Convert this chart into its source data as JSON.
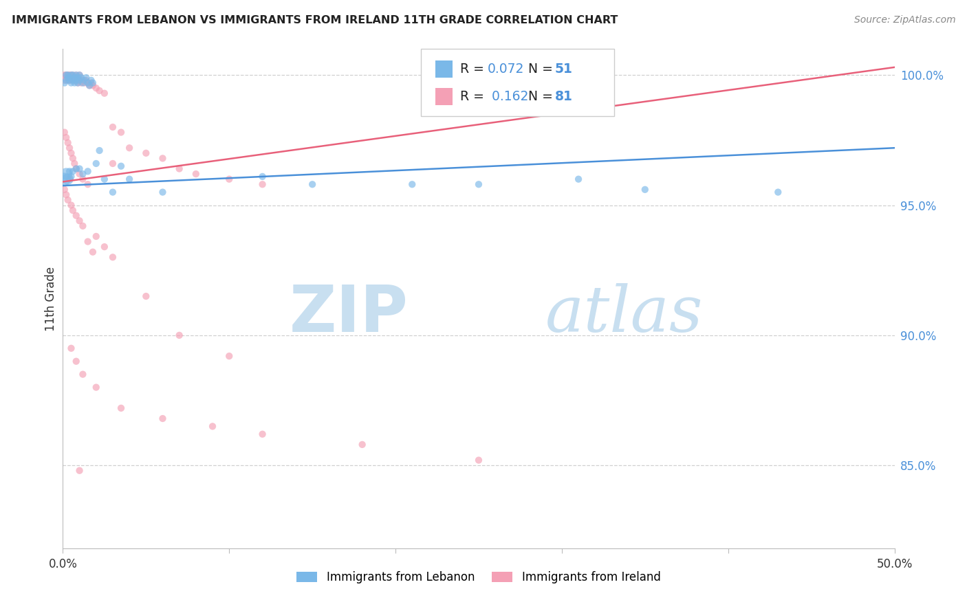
{
  "title": "IMMIGRANTS FROM LEBANON VS IMMIGRANTS FROM IRELAND 11TH GRADE CORRELATION CHART",
  "source": "Source: ZipAtlas.com",
  "ylabel": "11th Grade",
  "ylabel_right_labels": [
    "100.0%",
    "95.0%",
    "90.0%",
    "85.0%"
  ],
  "ylabel_right_values": [
    1.0,
    0.95,
    0.9,
    0.85
  ],
  "xmin": 0.0,
  "xmax": 0.5,
  "ymin": 0.818,
  "ymax": 1.01,
  "legend_blue_r": "0.072",
  "legend_blue_n": "51",
  "legend_pink_r": "0.162",
  "legend_pink_n": "81",
  "legend_label_blue": "Immigrants from Lebanon",
  "legend_label_pink": "Immigrants from Ireland",
  "blue_color": "#7ab8e8",
  "pink_color": "#f4a0b5",
  "blue_line_color": "#4a90d9",
  "pink_line_color": "#e8607a",
  "watermark_zip": "ZIP",
  "watermark_atlas": "atlas",
  "grid_color": "#d0d0d0",
  "blue_line_x0": 0.0,
  "blue_line_y0": 0.9575,
  "blue_line_x1": 0.5,
  "blue_line_y1": 0.972,
  "pink_line_x0": 0.0,
  "pink_line_y0": 0.959,
  "pink_line_x1": 0.5,
  "pink_line_y1": 1.003,
  "blue_x": [
    0.001,
    0.002,
    0.002,
    0.003,
    0.003,
    0.004,
    0.004,
    0.005,
    0.005,
    0.006,
    0.006,
    0.007,
    0.007,
    0.008,
    0.008,
    0.009,
    0.009,
    0.01,
    0.01,
    0.011,
    0.012,
    0.013,
    0.014,
    0.015,
    0.016,
    0.017,
    0.018,
    0.02,
    0.022,
    0.025,
    0.03,
    0.035,
    0.04,
    0.06,
    0.12,
    0.15,
    0.21,
    0.25,
    0.31,
    0.35,
    0.43,
    0.001,
    0.002,
    0.003,
    0.004,
    0.005,
    0.006,
    0.008,
    0.01,
    0.012,
    0.015
  ],
  "blue_y": [
    0.997,
    1.0,
    0.998,
    0.999,
    1.0,
    0.998,
    0.999,
    0.997,
    1.0,
    0.998,
    1.0,
    0.999,
    0.997,
    0.998,
    1.0,
    0.999,
    0.997,
    0.998,
    1.0,
    0.999,
    0.997,
    0.998,
    0.999,
    0.997,
    0.996,
    0.998,
    0.997,
    0.966,
    0.971,
    0.96,
    0.955,
    0.965,
    0.96,
    0.955,
    0.961,
    0.958,
    0.958,
    0.958,
    0.96,
    0.956,
    0.955,
    0.96,
    0.962,
    0.96,
    0.963,
    0.961,
    0.963,
    0.964,
    0.964,
    0.962,
    0.963
  ],
  "blue_sizes": [
    55,
    55,
    55,
    55,
    55,
    55,
    55,
    55,
    55,
    55,
    55,
    55,
    55,
    55,
    55,
    55,
    55,
    55,
    55,
    55,
    55,
    55,
    55,
    55,
    55,
    55,
    55,
    55,
    55,
    55,
    55,
    55,
    55,
    55,
    55,
    55,
    55,
    55,
    55,
    55,
    55,
    180,
    160,
    140,
    55,
    55,
    55,
    55,
    55,
    55,
    55
  ],
  "pink_x": [
    0.001,
    0.001,
    0.002,
    0.002,
    0.003,
    0.003,
    0.003,
    0.004,
    0.004,
    0.005,
    0.005,
    0.006,
    0.006,
    0.007,
    0.007,
    0.008,
    0.008,
    0.009,
    0.009,
    0.01,
    0.01,
    0.011,
    0.012,
    0.013,
    0.014,
    0.015,
    0.016,
    0.017,
    0.018,
    0.02,
    0.022,
    0.025,
    0.03,
    0.035,
    0.04,
    0.05,
    0.06,
    0.03,
    0.07,
    0.08,
    0.1,
    0.12,
    0.001,
    0.002,
    0.003,
    0.004,
    0.005,
    0.006,
    0.007,
    0.008,
    0.01,
    0.012,
    0.015,
    0.001,
    0.002,
    0.003,
    0.004,
    0.005,
    0.006,
    0.008,
    0.01,
    0.012,
    0.02,
    0.015,
    0.025,
    0.018,
    0.03,
    0.05,
    0.07,
    0.1,
    0.005,
    0.008,
    0.012,
    0.02,
    0.035,
    0.06,
    0.09,
    0.12,
    0.18,
    0.25,
    0.01
  ],
  "pink_y": [
    1.0,
    0.998,
    1.0,
    0.999,
    1.0,
    0.999,
    0.998,
    1.0,
    0.998,
    1.0,
    0.999,
    0.998,
    1.0,
    0.999,
    0.998,
    1.0,
    0.999,
    0.998,
    0.997,
    1.0,
    0.998,
    0.997,
    0.998,
    0.997,
    0.998,
    0.997,
    0.996,
    0.997,
    0.996,
    0.995,
    0.994,
    0.993,
    0.98,
    0.978,
    0.972,
    0.97,
    0.968,
    0.966,
    0.964,
    0.962,
    0.96,
    0.958,
    0.978,
    0.976,
    0.974,
    0.972,
    0.97,
    0.968,
    0.966,
    0.964,
    0.962,
    0.96,
    0.958,
    0.956,
    0.954,
    0.952,
    0.96,
    0.95,
    0.948,
    0.946,
    0.944,
    0.942,
    0.938,
    0.936,
    0.934,
    0.932,
    0.93,
    0.915,
    0.9,
    0.892,
    0.895,
    0.89,
    0.885,
    0.88,
    0.872,
    0.868,
    0.865,
    0.862,
    0.858,
    0.852,
    0.848
  ],
  "pink_sizes": [
    55,
    55,
    55,
    55,
    55,
    55,
    55,
    55,
    55,
    55,
    55,
    55,
    55,
    55,
    55,
    55,
    55,
    55,
    55,
    55,
    55,
    55,
    55,
    55,
    55,
    55,
    55,
    55,
    55,
    55,
    55,
    55,
    55,
    55,
    55,
    55,
    55,
    55,
    55,
    55,
    55,
    55,
    55,
    55,
    55,
    55,
    55,
    55,
    55,
    55,
    55,
    55,
    55,
    55,
    55,
    55,
    55,
    55,
    55,
    55,
    55,
    55,
    55,
    55,
    55,
    55,
    55,
    55,
    55,
    55,
    55,
    55,
    55,
    55,
    55,
    55,
    55,
    55,
    55,
    55,
    55
  ]
}
